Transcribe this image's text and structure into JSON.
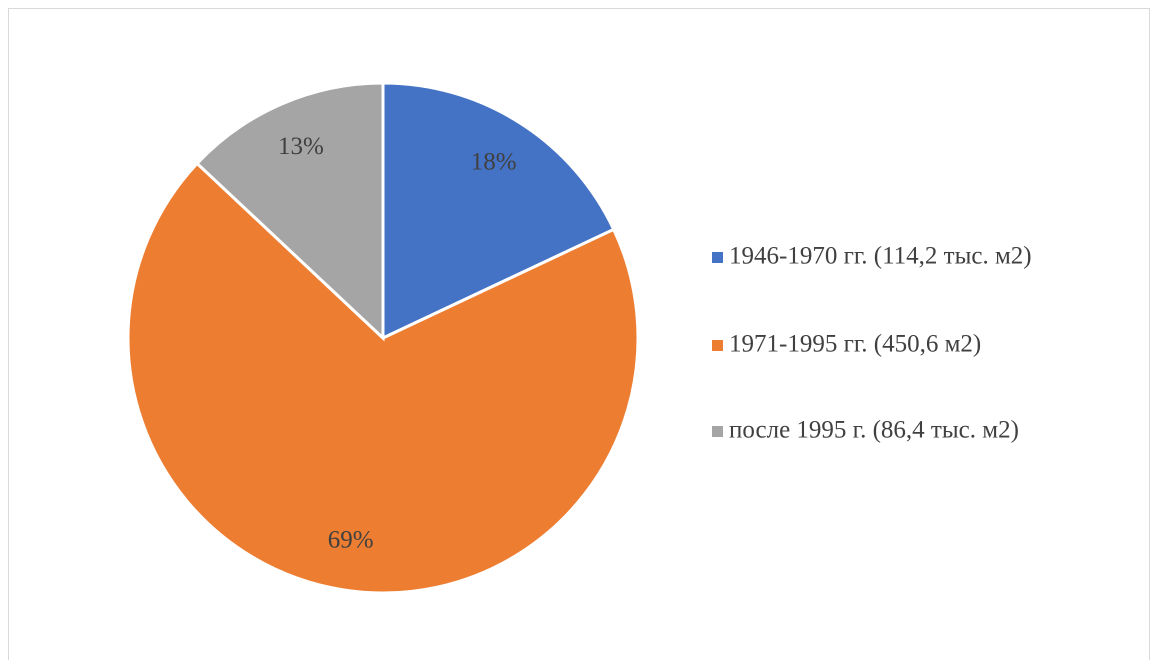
{
  "chart_data": {
    "type": "pie",
    "categories": [
      "1946-1970 гг. (114,2 тыс. м2)",
      "1971-1995 гг. (450,6 м2)",
      "после 1995 г. (86,4 тыс. м2)"
    ],
    "values": [
      18,
      69,
      13
    ],
    "value_labels": [
      "18%",
      "69%",
      "13%"
    ],
    "colors": [
      "#4472c4",
      "#ed7d31",
      "#a5a5a5"
    ],
    "legend": "right"
  }
}
